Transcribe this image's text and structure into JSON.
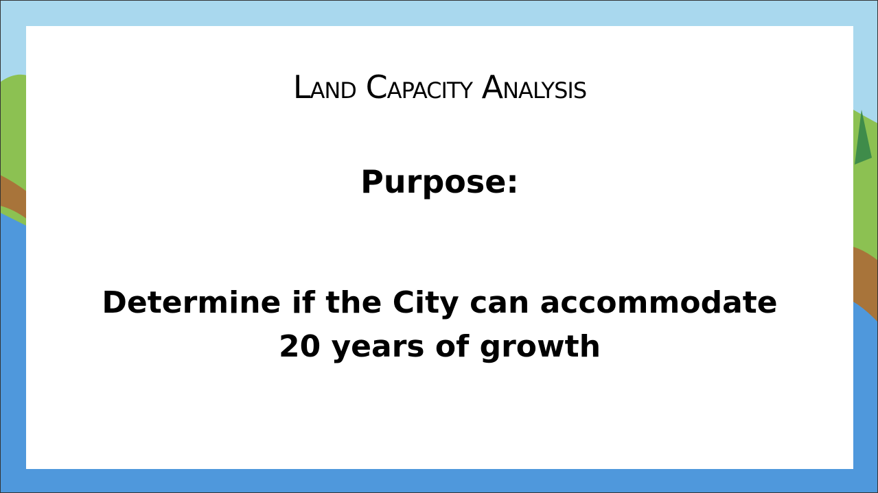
{
  "slide": {
    "title": "Land Capacity Analysis",
    "heading": "Purpose:",
    "body": [
      "Determine if the City can accommodate",
      "20 years of growth"
    ]
  }
}
